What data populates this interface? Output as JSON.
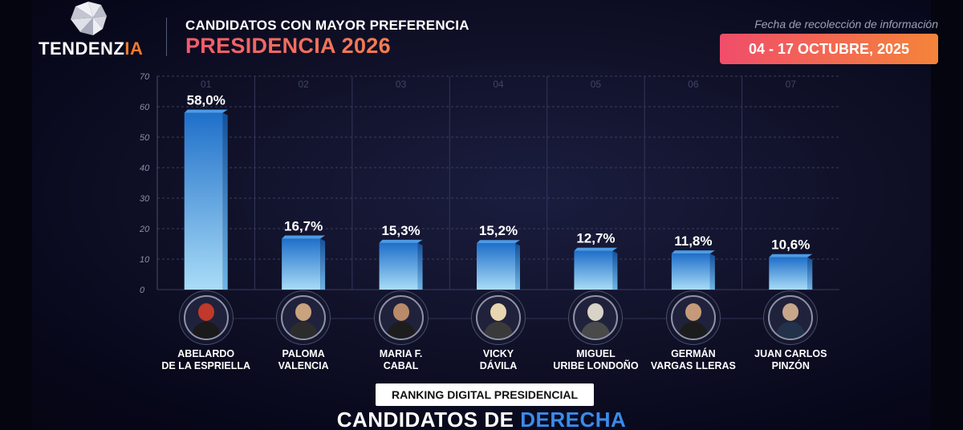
{
  "brand": {
    "name_main": "TENDENZ",
    "name_accent": "IA"
  },
  "header": {
    "subtitle": "CANDIDATOS CON MAYOR PREFERENCIA",
    "title": "PRESIDENCIA 2026"
  },
  "date": {
    "caption": "Fecha de recolección de información",
    "range": "04 - 17 OCTUBRE, 2025"
  },
  "chart_data": {
    "type": "bar",
    "categories": [
      "01",
      "02",
      "03",
      "04",
      "05",
      "06",
      "07"
    ],
    "values": [
      58.0,
      16.7,
      15.3,
      15.2,
      12.7,
      11.8,
      10.6
    ],
    "value_labels": [
      "58,0%",
      "16,7%",
      "15,3%",
      "15,2%",
      "12,7%",
      "11,8%",
      "10,6%"
    ],
    "ylim": [
      0,
      70
    ],
    "yticks": [
      "0",
      "10",
      "20",
      "30",
      "40",
      "50",
      "60",
      "70"
    ],
    "grid": true,
    "bar_color": "#3a8fe0"
  },
  "candidates": [
    {
      "line1": "ABELARDO",
      "line2": "DE LA ESPRIELLA",
      "icon": "person-photo-icon"
    },
    {
      "line1": "PALOMA",
      "line2": "VALENCIA",
      "icon": "person-photo-icon"
    },
    {
      "line1": "MARIA F.",
      "line2": "CABAL",
      "icon": "person-photo-icon"
    },
    {
      "line1": "VICKY",
      "line2": "DÁVILA",
      "icon": "person-photo-icon"
    },
    {
      "line1": "MIGUEL",
      "line2": "URIBE LONDOÑO",
      "icon": "person-photo-icon"
    },
    {
      "line1": "GERMÁN",
      "line2": "VARGAS LLERAS",
      "icon": "person-photo-icon"
    },
    {
      "line1": "JUAN CARLOS",
      "line2": "PINZÓN",
      "icon": "person-photo-icon"
    }
  ],
  "footer": {
    "ranking_label": "RANKING DIGITAL PRESIDENCIAL",
    "title_part1": "CANDIDATOS DE ",
    "title_part2": "DERECHA"
  }
}
